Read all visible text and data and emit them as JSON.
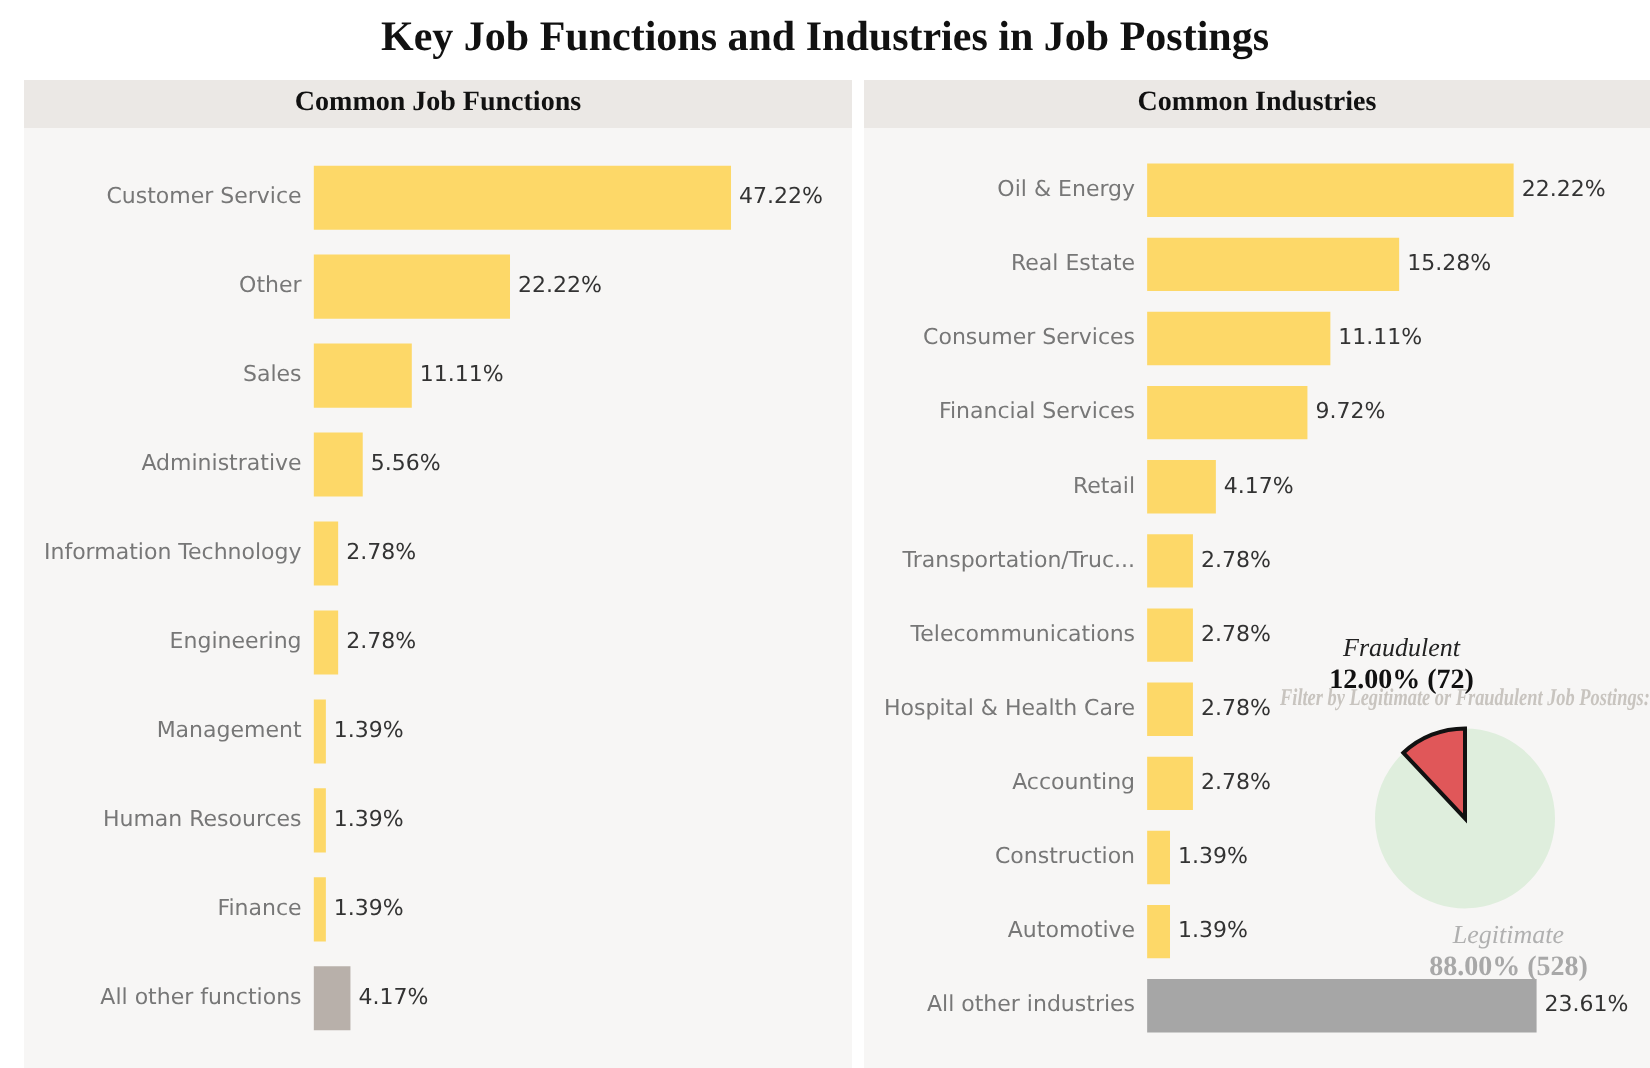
{
  "chart_data": [
    {
      "type": "other",
      "title": "Key Job Functions and Industries in Job Postings"
    },
    {
      "type": "bar",
      "orientation": "horizontal",
      "title": "Common Job Functions",
      "tick_labels": "y",
      "grid": false,
      "legend": false,
      "categories": [
        "Customer Service",
        "Other",
        "Sales",
        "Administrative",
        "Information Technology",
        "Engineering",
        "Management",
        "Human Resources",
        "Finance",
        "All other functions"
      ],
      "values": [
        47.22,
        22.22,
        11.11,
        5.56,
        2.78,
        2.78,
        1.39,
        1.39,
        1.39,
        4.17
      ],
      "value_labels": [
        "47.22%",
        "22.22%",
        "11.11%",
        "5.56%",
        "2.78%",
        "2.78%",
        "1.39%",
        "1.39%",
        "1.39%",
        "4.17%"
      ],
      "colors": [
        "#fdd868",
        "#fdd868",
        "#fdd868",
        "#fdd868",
        "#fdd868",
        "#fdd868",
        "#fdd868",
        "#fdd868",
        "#fdd868",
        "#b8b0aa"
      ]
    },
    {
      "type": "bar",
      "orientation": "horizontal",
      "title": "Common Industries",
      "tick_labels": "y",
      "grid": false,
      "legend": false,
      "categories": [
        "Oil & Energy",
        "Real Estate",
        "Consumer Services",
        "Financial Services",
        "Retail",
        "Transportation/Truc...",
        "Telecommunications",
        "Hospital & Health Care",
        "Accounting",
        "Construction",
        "Automotive",
        "All other industries"
      ],
      "values": [
        22.22,
        15.28,
        11.11,
        9.72,
        4.17,
        2.78,
        2.78,
        2.78,
        2.78,
        1.39,
        1.39,
        23.61
      ],
      "value_labels": [
        "22.22%",
        "15.28%",
        "11.11%",
        "9.72%",
        "4.17%",
        "2.78%",
        "2.78%",
        "2.78%",
        "2.78%",
        "1.39%",
        "1.39%",
        "23.61%"
      ],
      "colors": [
        "#fdd868",
        "#fdd868",
        "#fdd868",
        "#fdd868",
        "#fdd868",
        "#fdd868",
        "#fdd868",
        "#fdd868",
        "#fdd868",
        "#fdd868",
        "#fdd868",
        "#a6a6a6"
      ]
    },
    {
      "type": "pie",
      "title": "Filter by Legitimate or Fraudulent Job Postings:",
      "legend": false,
      "categories": [
        "Legitimate",
        "Fraudulent"
      ],
      "values": [
        88,
        12
      ],
      "value_labels": [
        "88.00% (528)",
        "12.00% (72)"
      ],
      "colors": [
        "#dfeedd",
        "#e05759"
      ]
    }
  ]
}
